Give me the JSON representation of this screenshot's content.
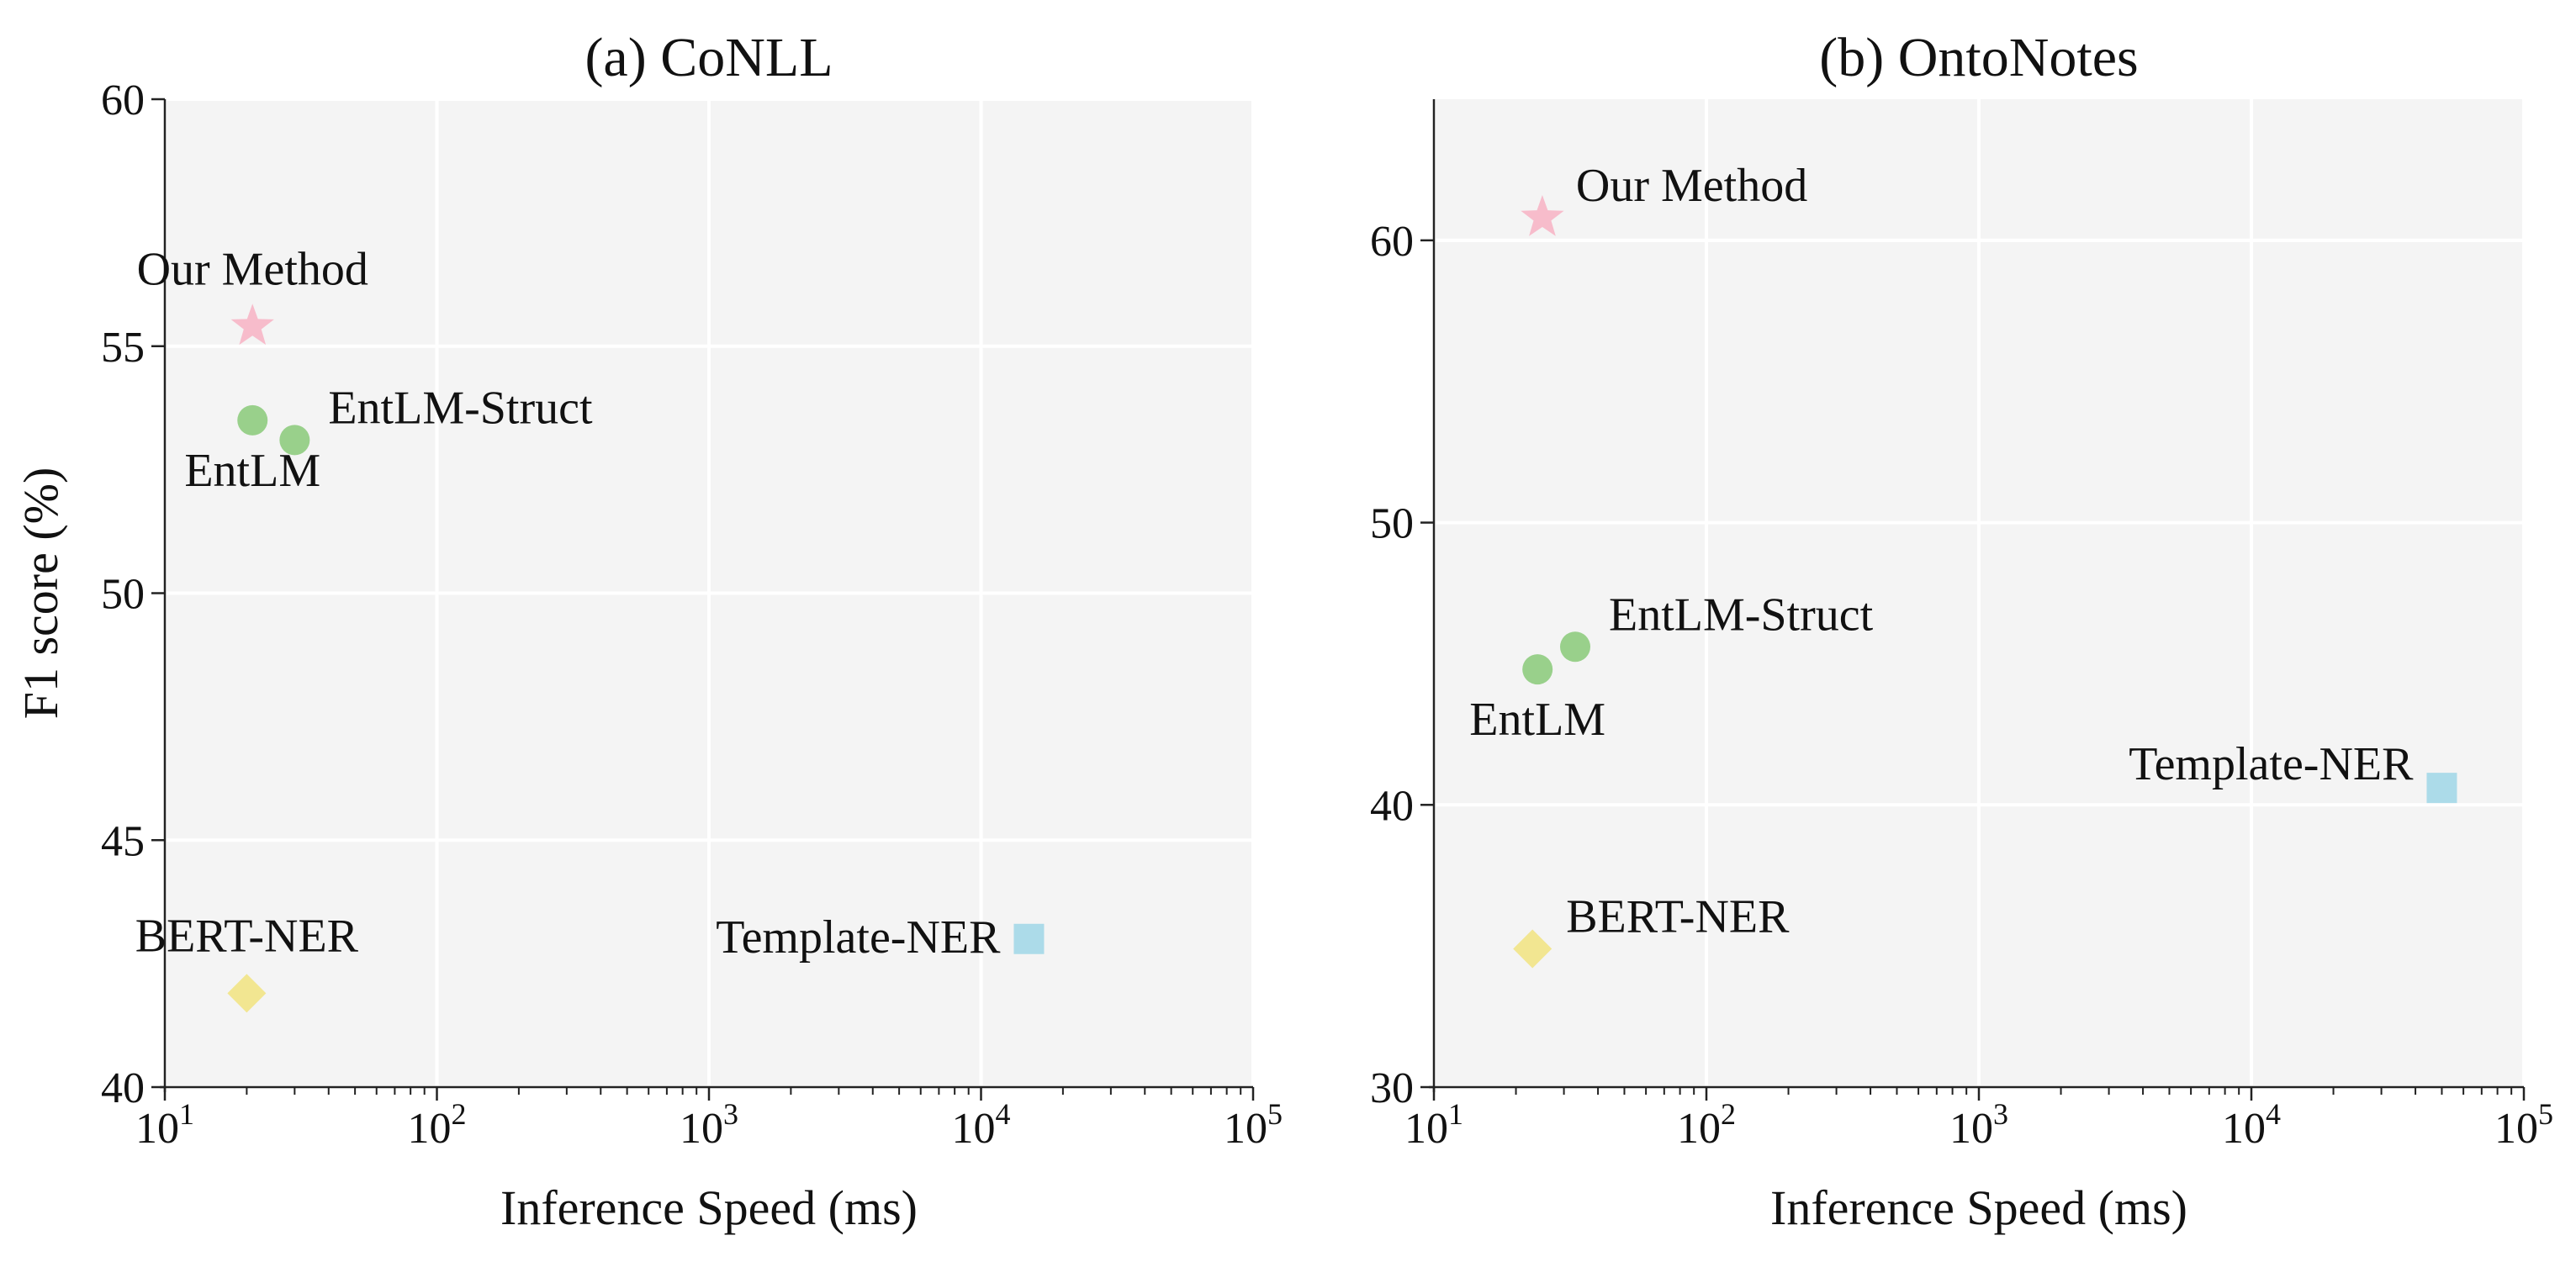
{
  "chart_data": [
    {
      "type": "scatter",
      "title": "(a) CoNLL",
      "xlabel": "Inference Speed (ms)",
      "ylabel": "F1 score (%)",
      "xscale": "log",
      "xlim": [
        10,
        100000
      ],
      "ylim": [
        40,
        60
      ],
      "grid": true,
      "xticks": [
        {
          "base": "10",
          "exp": "1"
        },
        {
          "base": "10",
          "exp": "2"
        },
        {
          "base": "10",
          "exp": "3"
        },
        {
          "base": "10",
          "exp": "4"
        },
        {
          "base": "10",
          "exp": "5"
        }
      ],
      "yticks": [
        "40",
        "45",
        "50",
        "55",
        "60"
      ],
      "ytick_values": [
        40,
        45,
        50,
        55,
        60
      ],
      "points": [
        {
          "label": "Our Method",
          "x": 21,
          "y": 55.4,
          "marker": "star",
          "color": "#f7bccb",
          "label_pos": "above"
        },
        {
          "label": "EntLM",
          "x": 21,
          "y": 53.5,
          "marker": "circle",
          "color": "#99d08b",
          "label_pos": "below"
        },
        {
          "label": "EntLM-Struct",
          "x": 30,
          "y": 53.1,
          "marker": "circle",
          "color": "#99d08b",
          "label_pos": "upper-right"
        },
        {
          "label": "BERT-NER",
          "x": 20,
          "y": 41.9,
          "marker": "diamond",
          "color": "#f2e691",
          "label_pos": "above"
        },
        {
          "label": "Template-NER",
          "x": 15000,
          "y": 43.0,
          "marker": "square",
          "color": "#acdbe9",
          "label_pos": "left"
        }
      ]
    },
    {
      "type": "scatter",
      "title": "(b) OntoNotes",
      "xlabel": "Inference Speed (ms)",
      "ylabel": "",
      "xscale": "log",
      "xlim": [
        10,
        100000
      ],
      "ylim": [
        30,
        65
      ],
      "grid": true,
      "xticks": [
        {
          "base": "10",
          "exp": "1"
        },
        {
          "base": "10",
          "exp": "2"
        },
        {
          "base": "10",
          "exp": "3"
        },
        {
          "base": "10",
          "exp": "4"
        },
        {
          "base": "10",
          "exp": "5"
        }
      ],
      "yticks": [
        "30",
        "40",
        "50",
        "60"
      ],
      "ytick_values": [
        30,
        40,
        50,
        60
      ],
      "points": [
        {
          "label": "Our Method",
          "x": 25,
          "y": 60.8,
          "marker": "star",
          "color": "#f7bccb",
          "label_pos": "upper-right"
        },
        {
          "label": "EntLM",
          "x": 24,
          "y": 44.8,
          "marker": "circle",
          "color": "#99d08b",
          "label_pos": "below"
        },
        {
          "label": "EntLM-Struct",
          "x": 33,
          "y": 45.6,
          "marker": "circle",
          "color": "#99d08b",
          "label_pos": "upper-right"
        },
        {
          "label": "BERT-NER",
          "x": 23,
          "y": 34.9,
          "marker": "diamond",
          "color": "#f2e691",
          "label_pos": "upper-right"
        },
        {
          "label": "Template-NER",
          "x": 50000,
          "y": 40.6,
          "marker": "square",
          "color": "#acdbe9",
          "label_pos": "upper-left"
        }
      ]
    }
  ]
}
